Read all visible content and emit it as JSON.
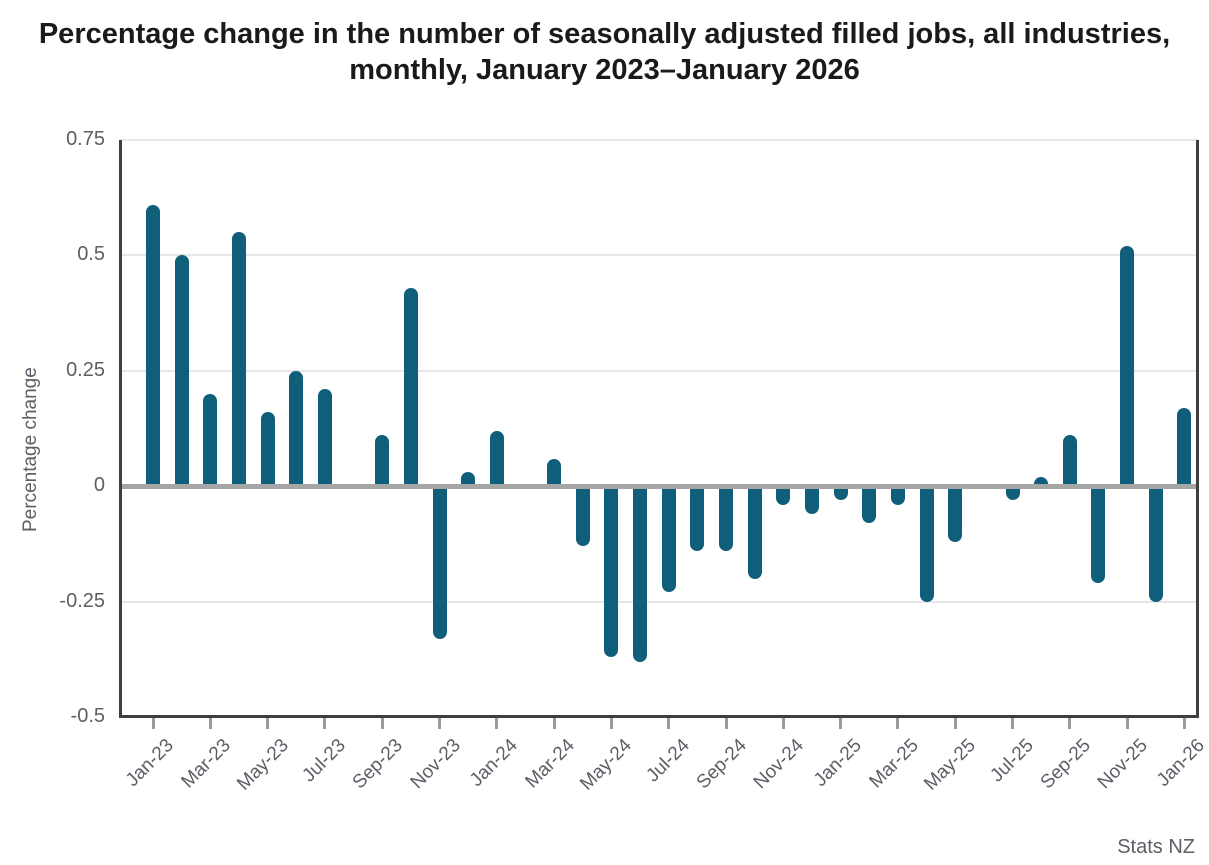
{
  "title": "Percentage change in the number of seasonally adjusted filled jobs, all industries, monthly, January 2023–January 2026",
  "source": "Stats NZ",
  "colors": {
    "bar": "#105f7a",
    "axis_line": "#3f3f3f",
    "zero_line": "#a6a6a6",
    "gridline": "#e7e7e7",
    "label_text": "#5b5f66",
    "title_text": "#1a1a1a"
  },
  "chart_data": {
    "type": "bar",
    "title": "Percentage change in the number of seasonally adjusted filled jobs, all industries, monthly, January 2023–January 2026",
    "xlabel": "",
    "ylabel": "Percentage change",
    "ylim": [
      -0.5,
      0.75
    ],
    "yticks": [
      0.75,
      0.5,
      0.25,
      0,
      -0.25,
      -0.5
    ],
    "grid": true,
    "legend": false,
    "x_tick_labels": [
      "Jan-23",
      "Mar-23",
      "May-23",
      "Jul-23",
      "Sep-23",
      "Nov-23",
      "Jan-24",
      "Mar-24",
      "May-24",
      "Jul-24",
      "Sep-24",
      "Nov-24",
      "Jan-25",
      "Mar-25",
      "May-25",
      "Jul-25",
      "Sep-25",
      "Nov-25",
      "Jan-26"
    ],
    "categories": [
      "Jan-23",
      "Feb-23",
      "Mar-23",
      "Apr-23",
      "May-23",
      "Jun-23",
      "Jul-23",
      "Aug-23",
      "Sep-23",
      "Oct-23",
      "Nov-23",
      "Dec-23",
      "Jan-24",
      "Feb-24",
      "Mar-24",
      "Apr-24",
      "May-24",
      "Jun-24",
      "Jul-24",
      "Aug-24",
      "Sep-24",
      "Oct-24",
      "Nov-24",
      "Dec-24",
      "Jan-25",
      "Feb-25",
      "Mar-25",
      "Apr-25",
      "May-25",
      "Jun-25",
      "Jul-25",
      "Aug-25",
      "Sep-25",
      "Oct-25",
      "Nov-25",
      "Dec-25",
      "Jan-26"
    ],
    "values": [
      0.61,
      0.5,
      0.2,
      0.55,
      0.16,
      0.25,
      0.21,
      0.0,
      0.11,
      0.43,
      -0.33,
      0.03,
      0.12,
      0.0,
      0.06,
      -0.13,
      -0.37,
      -0.38,
      -0.23,
      -0.14,
      -0.14,
      -0.2,
      -0.04,
      -0.06,
      -0.03,
      -0.08,
      -0.04,
      -0.25,
      -0.12,
      0.0,
      -0.03,
      0.02,
      0.11,
      -0.21,
      0.52,
      -0.25,
      0.17
    ],
    "source": "Stats NZ"
  }
}
